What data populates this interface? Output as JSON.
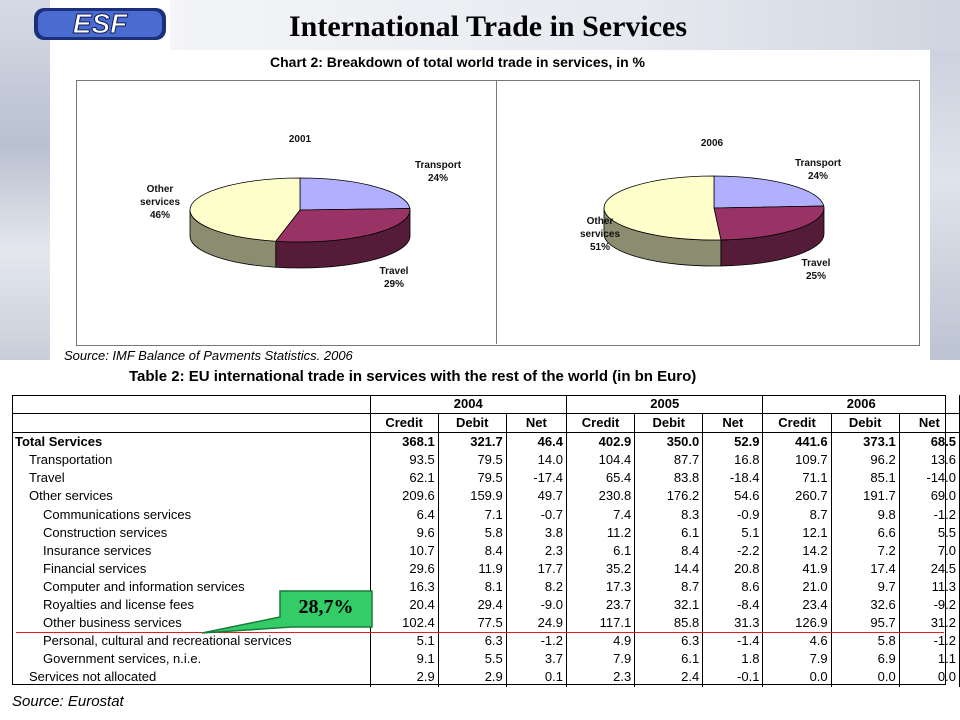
{
  "header": {
    "logo_text": "ESF",
    "title": "International Trade in Services"
  },
  "chart_section": {
    "title": "Chart 2: Breakdown of total world trade in services, in %",
    "source": "Source: IMF Balance of Pavments Statistics. 2006"
  },
  "chart_data": [
    {
      "type": "pie",
      "title": "2001",
      "style": "3d",
      "slices": [
        {
          "label": "Transport",
          "value": 24,
          "value_label": "24%",
          "color": "#b0b0ff"
        },
        {
          "label": "Travel",
          "value": 29,
          "value_label": "29%",
          "color": "#993366"
        },
        {
          "label": "Other services",
          "value": 46,
          "value_label": "46%",
          "color": "#ffffcc"
        }
      ]
    },
    {
      "type": "pie",
      "title": "2006",
      "style": "3d",
      "slices": [
        {
          "label": "Transport",
          "value": 24,
          "value_label": "24%",
          "color": "#b0b0ff"
        },
        {
          "label": "Travel",
          "value": 25,
          "value_label": "25%",
          "color": "#993366"
        },
        {
          "label": "Other services",
          "value": 51,
          "value_label": "51%",
          "color": "#ffffcc"
        }
      ]
    },
    {
      "type": "table",
      "title": "Table 2: EU international trade in services with the rest of the world (in bn Euro)",
      "years": [
        "2004",
        "2005",
        "2006"
      ],
      "columns": [
        "Credit",
        "Debit",
        "Net",
        "Credit",
        "Debit",
        "Net",
        "Credit",
        "Debit",
        "Net"
      ],
      "rows": [
        {
          "name": "Total Services",
          "level": 0,
          "values": [
            "368.1",
            "321.7",
            "46.4",
            "402.9",
            "350.0",
            "52.9",
            "441.6",
            "373.1",
            "68.5"
          ]
        },
        {
          "name": "Transportation",
          "level": 1,
          "values": [
            "93.5",
            "79.5",
            "14.0",
            "104.4",
            "87.7",
            "16.8",
            "109.7",
            "96.2",
            "13.6"
          ]
        },
        {
          "name": "Travel",
          "level": 1,
          "values": [
            "62.1",
            "79.5",
            "-17.4",
            "65.4",
            "83.8",
            "-18.4",
            "71.1",
            "85.1",
            "-14.0"
          ]
        },
        {
          "name": "Other services",
          "level": 1,
          "values": [
            "209.6",
            "159.9",
            "49.7",
            "230.8",
            "176.2",
            "54.6",
            "260.7",
            "191.7",
            "69.0"
          ]
        },
        {
          "name": "Communications services",
          "level": 2,
          "values": [
            "6.4",
            "7.1",
            "-0.7",
            "7.4",
            "8.3",
            "-0.9",
            "8.7",
            "9.8",
            "-1.2"
          ]
        },
        {
          "name": "Construction services",
          "level": 2,
          "values": [
            "9.6",
            "5.8",
            "3.8",
            "11.2",
            "6.1",
            "5.1",
            "12.1",
            "6.6",
            "5.5"
          ]
        },
        {
          "name": "Insurance services",
          "level": 2,
          "values": [
            "10.7",
            "8.4",
            "2.3",
            "6.1",
            "8.4",
            "-2.2",
            "14.2",
            "7.2",
            "7.0"
          ]
        },
        {
          "name": "Financial services",
          "level": 2,
          "values": [
            "29.6",
            "11.9",
            "17.7",
            "35.2",
            "14.4",
            "20.8",
            "41.9",
            "17.4",
            "24.5"
          ]
        },
        {
          "name": "Computer and information services",
          "level": 2,
          "values": [
            "16.3",
            "8.1",
            "8.2",
            "17.3",
            "8.7",
            "8.6",
            "21.0",
            "9.7",
            "11.3"
          ]
        },
        {
          "name": "Royalties and license fees",
          "level": 2,
          "values": [
            "20.4",
            "29.4",
            "-9.0",
            "23.7",
            "32.1",
            "-8.4",
            "23.4",
            "32.6",
            "-9.2"
          ]
        },
        {
          "name": "Other business services",
          "level": 2,
          "values": [
            "102.4",
            "77.5",
            "24.9",
            "117.1",
            "85.8",
            "31.3",
            "126.9",
            "95.7",
            "31.2"
          ]
        },
        {
          "name": "Personal, cultural and recreational services",
          "level": 2,
          "values": [
            "5.1",
            "6.3",
            "-1.2",
            "4.9",
            "6.3",
            "-1.4",
            "4.6",
            "5.8",
            "-1.2"
          ]
        },
        {
          "name": "Government services, n.i.e.",
          "level": 2,
          "values": [
            "9.1",
            "5.5",
            "3.7",
            "7.9",
            "6.1",
            "1.8",
            "7.9",
            "6.9",
            "1.1"
          ]
        },
        {
          "name": "Services not allocated",
          "level": 1,
          "values": [
            "2.9",
            "2.9",
            "0.1",
            "2.3",
            "2.4",
            "-0.1",
            "0.0",
            "0.0",
            "0.0"
          ]
        }
      ],
      "source": "Source: Eurostat"
    }
  ],
  "callout": {
    "text": "28,7%",
    "color": "#33cc66"
  }
}
